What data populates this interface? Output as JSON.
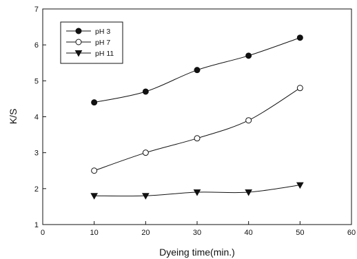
{
  "chart_data": {
    "type": "line",
    "title": "",
    "xlabel": "Dyeing time(min.)",
    "ylabel": "K/S",
    "xlim": [
      0,
      60
    ],
    "ylim": [
      1,
      7
    ],
    "x_ticks": [
      0,
      10,
      20,
      30,
      40,
      50,
      60
    ],
    "y_ticks": [
      1,
      2,
      3,
      4,
      5,
      6,
      7
    ],
    "grid": false,
    "legend_position": "top-left",
    "x": [
      10,
      20,
      30,
      40,
      50
    ],
    "series": [
      {
        "name": "pH 3",
        "marker": "filled-circle",
        "values": [
          4.4,
          4.7,
          5.3,
          5.7,
          6.2
        ]
      },
      {
        "name": "pH 7",
        "marker": "open-circle",
        "values": [
          2.5,
          3.0,
          3.4,
          3.9,
          4.8
        ]
      },
      {
        "name": "pH 11",
        "marker": "filled-triangle-down",
        "values": [
          1.8,
          1.8,
          1.9,
          1.9,
          2.1
        ]
      }
    ],
    "colors": {
      "line": "#111111",
      "background": "#ffffff"
    }
  }
}
